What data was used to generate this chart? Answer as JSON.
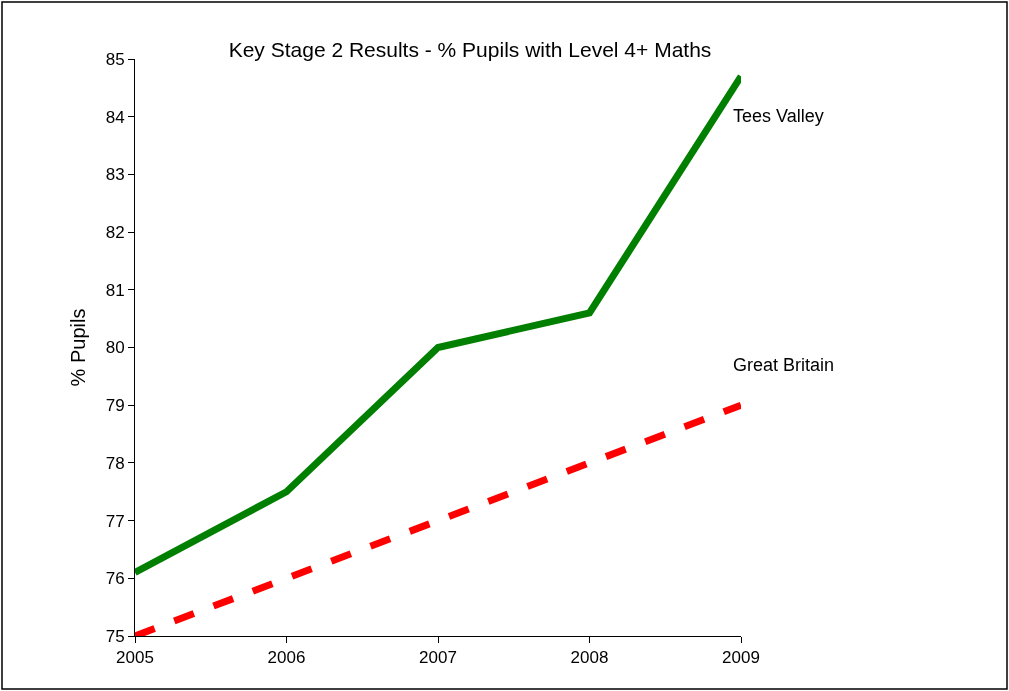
{
  "chart_data": {
    "type": "line",
    "title": "Key Stage 2 Results - % Pupils with Level 4+ Maths",
    "ylabel": "% Pupils",
    "x": [
      2005,
      2006,
      2007,
      2008,
      2009
    ],
    "series": [
      {
        "name": "Tees Valley",
        "color": "#007f00",
        "line_style": "solid",
        "values": [
          76.1,
          77.5,
          80.0,
          80.6,
          84.7
        ]
      },
      {
        "name": "Great Britain",
        "color": "#ff0000",
        "line_style": "dashed",
        "values": [
          75,
          76,
          77,
          78,
          79
        ]
      }
    ],
    "xlim": [
      2005,
      2009
    ],
    "xticks": [
      2005,
      2006,
      2007,
      2008,
      2009
    ],
    "ylim": [
      75,
      85
    ],
    "yticks": [
      75,
      76,
      77,
      78,
      79,
      80,
      81,
      82,
      83,
      84,
      85
    ]
  }
}
